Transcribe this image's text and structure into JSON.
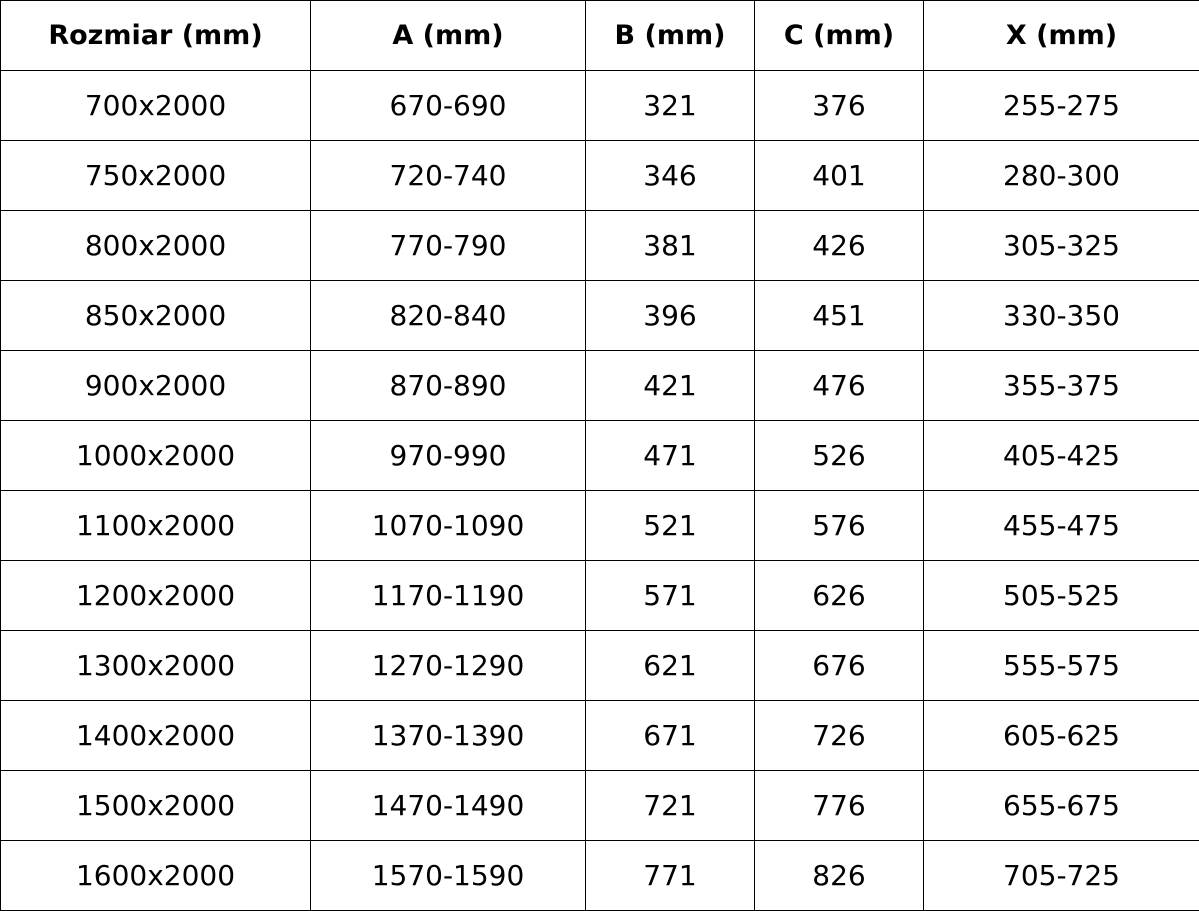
{
  "table": {
    "headers": [
      "Rozmiar (mm)",
      "A (mm)",
      "B (mm)",
      "C (mm)",
      "X (mm)"
    ],
    "rows": [
      [
        "700x2000",
        "670-690",
        "321",
        "376",
        "255-275"
      ],
      [
        "750x2000",
        "720-740",
        "346",
        "401",
        "280-300"
      ],
      [
        "800x2000",
        "770-790",
        "381",
        "426",
        "305-325"
      ],
      [
        "850x2000",
        "820-840",
        "396",
        "451",
        "330-350"
      ],
      [
        "900x2000",
        "870-890",
        "421",
        "476",
        "355-375"
      ],
      [
        "1000x2000",
        "970-990",
        "471",
        "526",
        "405-425"
      ],
      [
        "1100x2000",
        "1070-1090",
        "521",
        "576",
        "455-475"
      ],
      [
        "1200x2000",
        "1170-1190",
        "571",
        "626",
        "505-525"
      ],
      [
        "1300x2000",
        "1270-1290",
        "621",
        "676",
        "555-575"
      ],
      [
        "1400x2000",
        "1370-1390",
        "671",
        "726",
        "605-625"
      ],
      [
        "1500x2000",
        "1470-1490",
        "721",
        "776",
        "655-675"
      ],
      [
        "1600x2000",
        "1570-1590",
        "771",
        "826",
        "705-725"
      ]
    ]
  }
}
